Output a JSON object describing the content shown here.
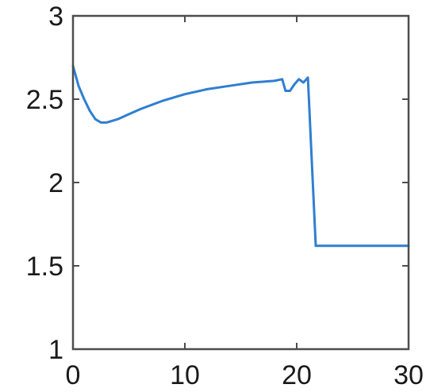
{
  "chart_data": {
    "type": "line",
    "title": "",
    "xlabel": "",
    "ylabel": "",
    "xlim": [
      0,
      30
    ],
    "ylim": [
      1,
      3
    ],
    "xticks": [
      0,
      10,
      20,
      30
    ],
    "xtick_labels": [
      "0",
      "10",
      "20",
      "30"
    ],
    "yticks": [
      1,
      1.5,
      2,
      2.5,
      3
    ],
    "ytick_labels": [
      "1",
      "1.5",
      "2",
      "2.5",
      "3"
    ],
    "grid": false,
    "series_color": "#2f7fd0",
    "series": [
      {
        "x": [
          0,
          0.5,
          1,
          1.5,
          2,
          2.5,
          3,
          4,
          5,
          6,
          8,
          10,
          12,
          14,
          16,
          18,
          18.7,
          19.0,
          19.4,
          19.8,
          20.2,
          20.6,
          21.0,
          21.3,
          21.7,
          22.0,
          25,
          30
        ],
        "y": [
          2.7,
          2.58,
          2.5,
          2.43,
          2.38,
          2.36,
          2.36,
          2.38,
          2.41,
          2.44,
          2.49,
          2.53,
          2.56,
          2.58,
          2.6,
          2.61,
          2.62,
          2.55,
          2.55,
          2.59,
          2.62,
          2.6,
          2.63,
          2.2,
          1.62,
          1.62,
          1.62,
          1.62
        ]
      }
    ]
  }
}
